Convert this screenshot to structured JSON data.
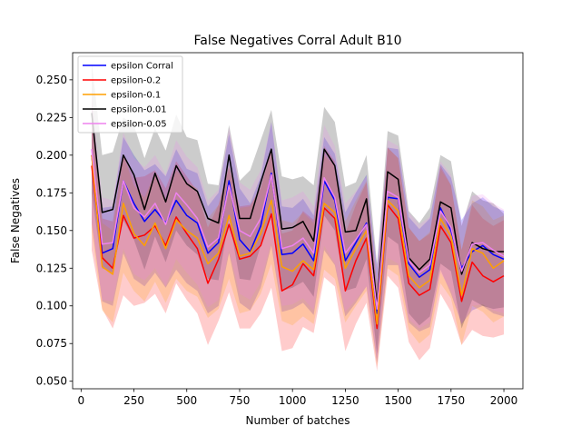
{
  "chart_data": {
    "type": "line",
    "title": "False Negatives Corral Adult B10",
    "xlabel": "Number of batches",
    "ylabel": "False Negatives",
    "xlim": [
      -40,
      2090
    ],
    "ylim": [
      0.045,
      0.268
    ],
    "xticks": [
      0,
      250,
      500,
      750,
      1000,
      1250,
      1500,
      1750,
      2000
    ],
    "yticks": [
      0.05,
      0.075,
      0.1,
      0.125,
      0.15,
      0.175,
      0.2,
      0.225,
      0.25
    ],
    "ytick_labels": [
      "0.050",
      "0.075",
      "0.100",
      "0.125",
      "0.150",
      "0.175",
      "0.200",
      "0.225",
      "0.250"
    ],
    "grid": false,
    "legend_position": "top-left",
    "shaded_band": "confidence interval around each series",
    "x": [
      50,
      100,
      150,
      200,
      250,
      300,
      350,
      400,
      450,
      500,
      550,
      600,
      650,
      700,
      750,
      800,
      850,
      900,
      950,
      1000,
      1050,
      1100,
      1150,
      1200,
      1250,
      1300,
      1350,
      1400,
      1450,
      1500,
      1550,
      1600,
      1650,
      1700,
      1750,
      1800,
      1850,
      1900,
      1950,
      2000
    ],
    "series": [
      {
        "name": "epsilon Corral",
        "color": "#0000ff",
        "values": [
          0.2,
          0.135,
          0.138,
          0.183,
          0.168,
          0.156,
          0.164,
          0.155,
          0.17,
          0.16,
          0.155,
          0.135,
          0.142,
          0.183,
          0.144,
          0.136,
          0.153,
          0.188,
          0.134,
          0.135,
          0.141,
          0.13,
          0.183,
          0.17,
          0.13,
          0.142,
          0.155,
          0.095,
          0.172,
          0.171,
          0.128,
          0.119,
          0.124,
          0.165,
          0.15,
          0.125,
          0.136,
          0.14,
          0.134,
          0.131
        ],
        "lower": [
          0.155,
          0.103,
          0.1,
          0.135,
          0.118,
          0.113,
          0.122,
          0.112,
          0.124,
          0.115,
          0.11,
          0.095,
          0.1,
          0.135,
          0.102,
          0.097,
          0.112,
          0.14,
          0.096,
          0.098,
          0.102,
          0.094,
          0.137,
          0.127,
          0.093,
          0.102,
          0.113,
          0.062,
          0.127,
          0.127,
          0.089,
          0.083,
          0.086,
          0.124,
          0.108,
          0.088,
          0.097,
          0.1,
          0.095,
          0.093
        ],
        "upper": [
          0.233,
          0.165,
          0.166,
          0.212,
          0.2,
          0.19,
          0.194,
          0.186,
          0.204,
          0.191,
          0.188,
          0.166,
          0.175,
          0.214,
          0.178,
          0.168,
          0.186,
          0.222,
          0.166,
          0.165,
          0.171,
          0.16,
          0.212,
          0.201,
          0.162,
          0.175,
          0.187,
          0.125,
          0.205,
          0.204,
          0.159,
          0.151,
          0.158,
          0.194,
          0.185,
          0.157,
          0.168,
          0.172,
          0.166,
          0.163
        ]
      },
      {
        "name": "epsilon-0.2",
        "color": "#ff0000",
        "values": [
          0.193,
          0.132,
          0.125,
          0.16,
          0.145,
          0.147,
          0.153,
          0.14,
          0.159,
          0.148,
          0.138,
          0.115,
          0.131,
          0.154,
          0.131,
          0.133,
          0.14,
          0.161,
          0.11,
          0.114,
          0.128,
          0.12,
          0.165,
          0.158,
          0.11,
          0.13,
          0.145,
          0.085,
          0.167,
          0.158,
          0.115,
          0.107,
          0.111,
          0.153,
          0.142,
          0.103,
          0.129,
          0.12,
          0.116,
          0.12
        ],
        "lower": [
          0.137,
          0.098,
          0.085,
          0.107,
          0.1,
          0.102,
          0.108,
          0.095,
          0.115,
          0.104,
          0.095,
          0.074,
          0.09,
          0.109,
          0.085,
          0.085,
          0.095,
          0.112,
          0.07,
          0.072,
          0.086,
          0.082,
          0.119,
          0.113,
          0.07,
          0.088,
          0.102,
          0.057,
          0.12,
          0.112,
          0.076,
          0.064,
          0.072,
          0.108,
          0.096,
          0.074,
          0.084,
          0.08,
          0.079,
          0.081
        ],
        "upper": [
          0.237,
          0.158,
          0.156,
          0.2,
          0.185,
          0.186,
          0.19,
          0.178,
          0.196,
          0.186,
          0.176,
          0.152,
          0.167,
          0.192,
          0.166,
          0.167,
          0.178,
          0.204,
          0.148,
          0.15,
          0.163,
          0.157,
          0.206,
          0.196,
          0.148,
          0.167,
          0.182,
          0.111,
          0.205,
          0.198,
          0.152,
          0.143,
          0.148,
          0.193,
          0.18,
          0.137,
          0.167,
          0.158,
          0.153,
          0.157
        ]
      },
      {
        "name": "epsilon-0.1",
        "color": "#ff9f00",
        "values": [
          0.2,
          0.126,
          0.121,
          0.168,
          0.148,
          0.14,
          0.155,
          0.138,
          0.157,
          0.15,
          0.145,
          0.128,
          0.135,
          0.16,
          0.133,
          0.135,
          0.148,
          0.17,
          0.126,
          0.123,
          0.13,
          0.124,
          0.168,
          0.162,
          0.125,
          0.138,
          0.15,
          0.088,
          0.17,
          0.163,
          0.12,
          0.112,
          0.117,
          0.158,
          0.146,
          0.107,
          0.138,
          0.135,
          0.125,
          0.13
        ],
        "lower": [
          0.15,
          0.097,
          0.089,
          0.122,
          0.11,
          0.103,
          0.116,
          0.102,
          0.118,
          0.11,
          0.106,
          0.092,
          0.098,
          0.118,
          0.095,
          0.097,
          0.108,
          0.128,
          0.09,
          0.087,
          0.093,
          0.088,
          0.124,
          0.118,
          0.089,
          0.1,
          0.11,
          0.06,
          0.125,
          0.12,
          0.084,
          0.075,
          0.081,
          0.115,
          0.105,
          0.074,
          0.1,
          0.096,
          0.089,
          0.093
        ],
        "upper": [
          0.23,
          0.155,
          0.15,
          0.2,
          0.18,
          0.172,
          0.188,
          0.17,
          0.19,
          0.182,
          0.178,
          0.158,
          0.167,
          0.194,
          0.165,
          0.166,
          0.18,
          0.205,
          0.157,
          0.155,
          0.162,
          0.155,
          0.2,
          0.193,
          0.156,
          0.17,
          0.183,
          0.114,
          0.205,
          0.198,
          0.152,
          0.143,
          0.149,
          0.191,
          0.18,
          0.137,
          0.17,
          0.166,
          0.157,
          0.16
        ]
      },
      {
        "name": "epsilon-0.01",
        "color": "#000000",
        "values": [
          0.228,
          0.162,
          0.164,
          0.2,
          0.187,
          0.164,
          0.188,
          0.169,
          0.193,
          0.181,
          0.176,
          0.158,
          0.155,
          0.2,
          0.158,
          0.158,
          0.182,
          0.204,
          0.151,
          0.152,
          0.156,
          0.143,
          0.204,
          0.193,
          0.149,
          0.15,
          0.171,
          0.1,
          0.189,
          0.184,
          0.132,
          0.124,
          0.131,
          0.169,
          0.165,
          0.121,
          0.142,
          0.138,
          0.136,
          0.136
        ],
        "lower": [
          0.175,
          0.125,
          0.122,
          0.157,
          0.144,
          0.124,
          0.146,
          0.129,
          0.15,
          0.14,
          0.134,
          0.118,
          0.117,
          0.158,
          0.118,
          0.117,
          0.14,
          0.16,
          0.11,
          0.112,
          0.116,
          0.106,
          0.16,
          0.15,
          0.11,
          0.112,
          0.131,
          0.068,
          0.146,
          0.141,
          0.095,
          0.087,
          0.093,
          0.128,
          0.123,
          0.085,
          0.104,
          0.1,
          0.098,
          0.099
        ],
        "upper": [
          0.262,
          0.2,
          0.202,
          0.225,
          0.22,
          0.198,
          0.218,
          0.203,
          0.227,
          0.212,
          0.21,
          0.181,
          0.18,
          0.22,
          0.183,
          0.19,
          0.21,
          0.23,
          0.186,
          0.184,
          0.186,
          0.18,
          0.232,
          0.222,
          0.179,
          0.182,
          0.2,
          0.128,
          0.216,
          0.213,
          0.163,
          0.155,
          0.165,
          0.2,
          0.196,
          0.153,
          0.176,
          0.17,
          0.168,
          0.161
        ]
      },
      {
        "name": "epsilon-0.05",
        "color": "#ee82ee",
        "values": [
          0.204,
          0.141,
          0.142,
          0.183,
          0.165,
          0.159,
          0.168,
          0.154,
          0.175,
          0.167,
          0.158,
          0.139,
          0.145,
          0.18,
          0.15,
          0.146,
          0.158,
          0.187,
          0.138,
          0.14,
          0.145,
          0.135,
          0.185,
          0.172,
          0.135,
          0.144,
          0.154,
          0.098,
          0.176,
          0.172,
          0.13,
          0.122,
          0.127,
          0.163,
          0.152,
          0.123,
          0.141,
          0.142,
          0.137,
          0.133
        ],
        "lower": [
          0.155,
          0.104,
          0.103,
          0.138,
          0.121,
          0.117,
          0.125,
          0.113,
          0.131,
          0.122,
          0.114,
          0.099,
          0.104,
          0.137,
          0.108,
          0.104,
          0.116,
          0.142,
          0.1,
          0.101,
          0.105,
          0.097,
          0.14,
          0.128,
          0.096,
          0.104,
          0.113,
          0.064,
          0.132,
          0.128,
          0.091,
          0.085,
          0.089,
          0.122,
          0.11,
          0.088,
          0.1,
          0.101,
          0.097,
          0.095
        ],
        "upper": [
          0.238,
          0.172,
          0.17,
          0.215,
          0.198,
          0.192,
          0.2,
          0.187,
          0.21,
          0.199,
          0.192,
          0.17,
          0.177,
          0.218,
          0.182,
          0.177,
          0.19,
          0.222,
          0.17,
          0.172,
          0.176,
          0.166,
          0.22,
          0.206,
          0.168,
          0.176,
          0.186,
          0.126,
          0.21,
          0.206,
          0.162,
          0.154,
          0.159,
          0.196,
          0.187,
          0.155,
          0.173,
          0.174,
          0.168,
          0.164
        ]
      }
    ]
  }
}
